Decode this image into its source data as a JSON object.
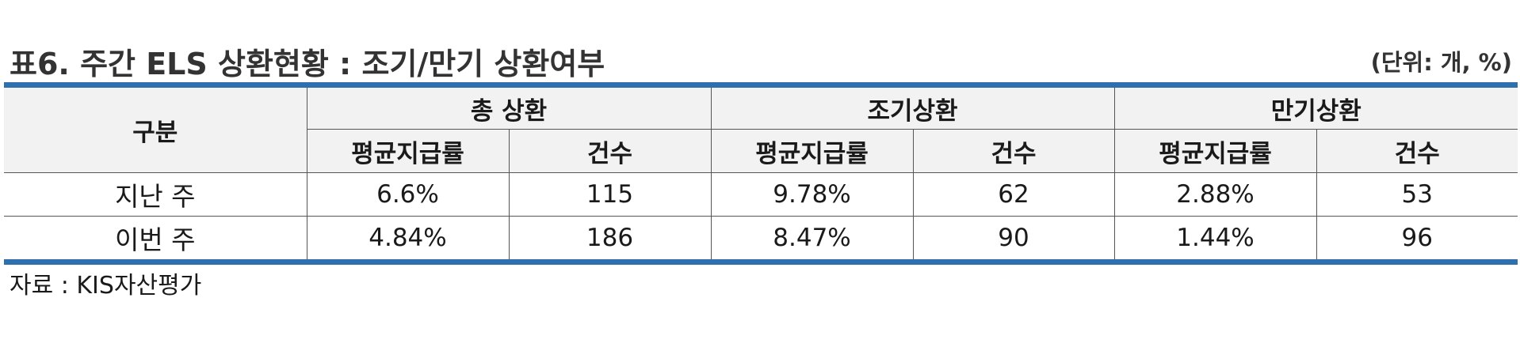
{
  "title": "표6. 주간 ELS 상환현황 : 조기/만기 상환여부",
  "unit": "(단위: 개, %)",
  "table": {
    "row_header": "구분",
    "groups": [
      "총 상환",
      "조기상환",
      "만기상환"
    ],
    "sub_headers": [
      "평균지급률",
      "건수",
      "평균지급률",
      "건수",
      "평균지급률",
      "건수"
    ],
    "rows": [
      {
        "label": "지난 주",
        "cells": [
          "6.6%",
          "115",
          "9.78%",
          "62",
          "2.88%",
          "53"
        ]
      },
      {
        "label": "이번 주",
        "cells": [
          "4.84%",
          "186",
          "8.47%",
          "90",
          "1.44%",
          "96"
        ]
      }
    ]
  },
  "source": "자료 : KIS자산평가",
  "colors": {
    "rule": "#2e6fad",
    "header_bg": "#f2f2f2",
    "title": "#333333"
  }
}
